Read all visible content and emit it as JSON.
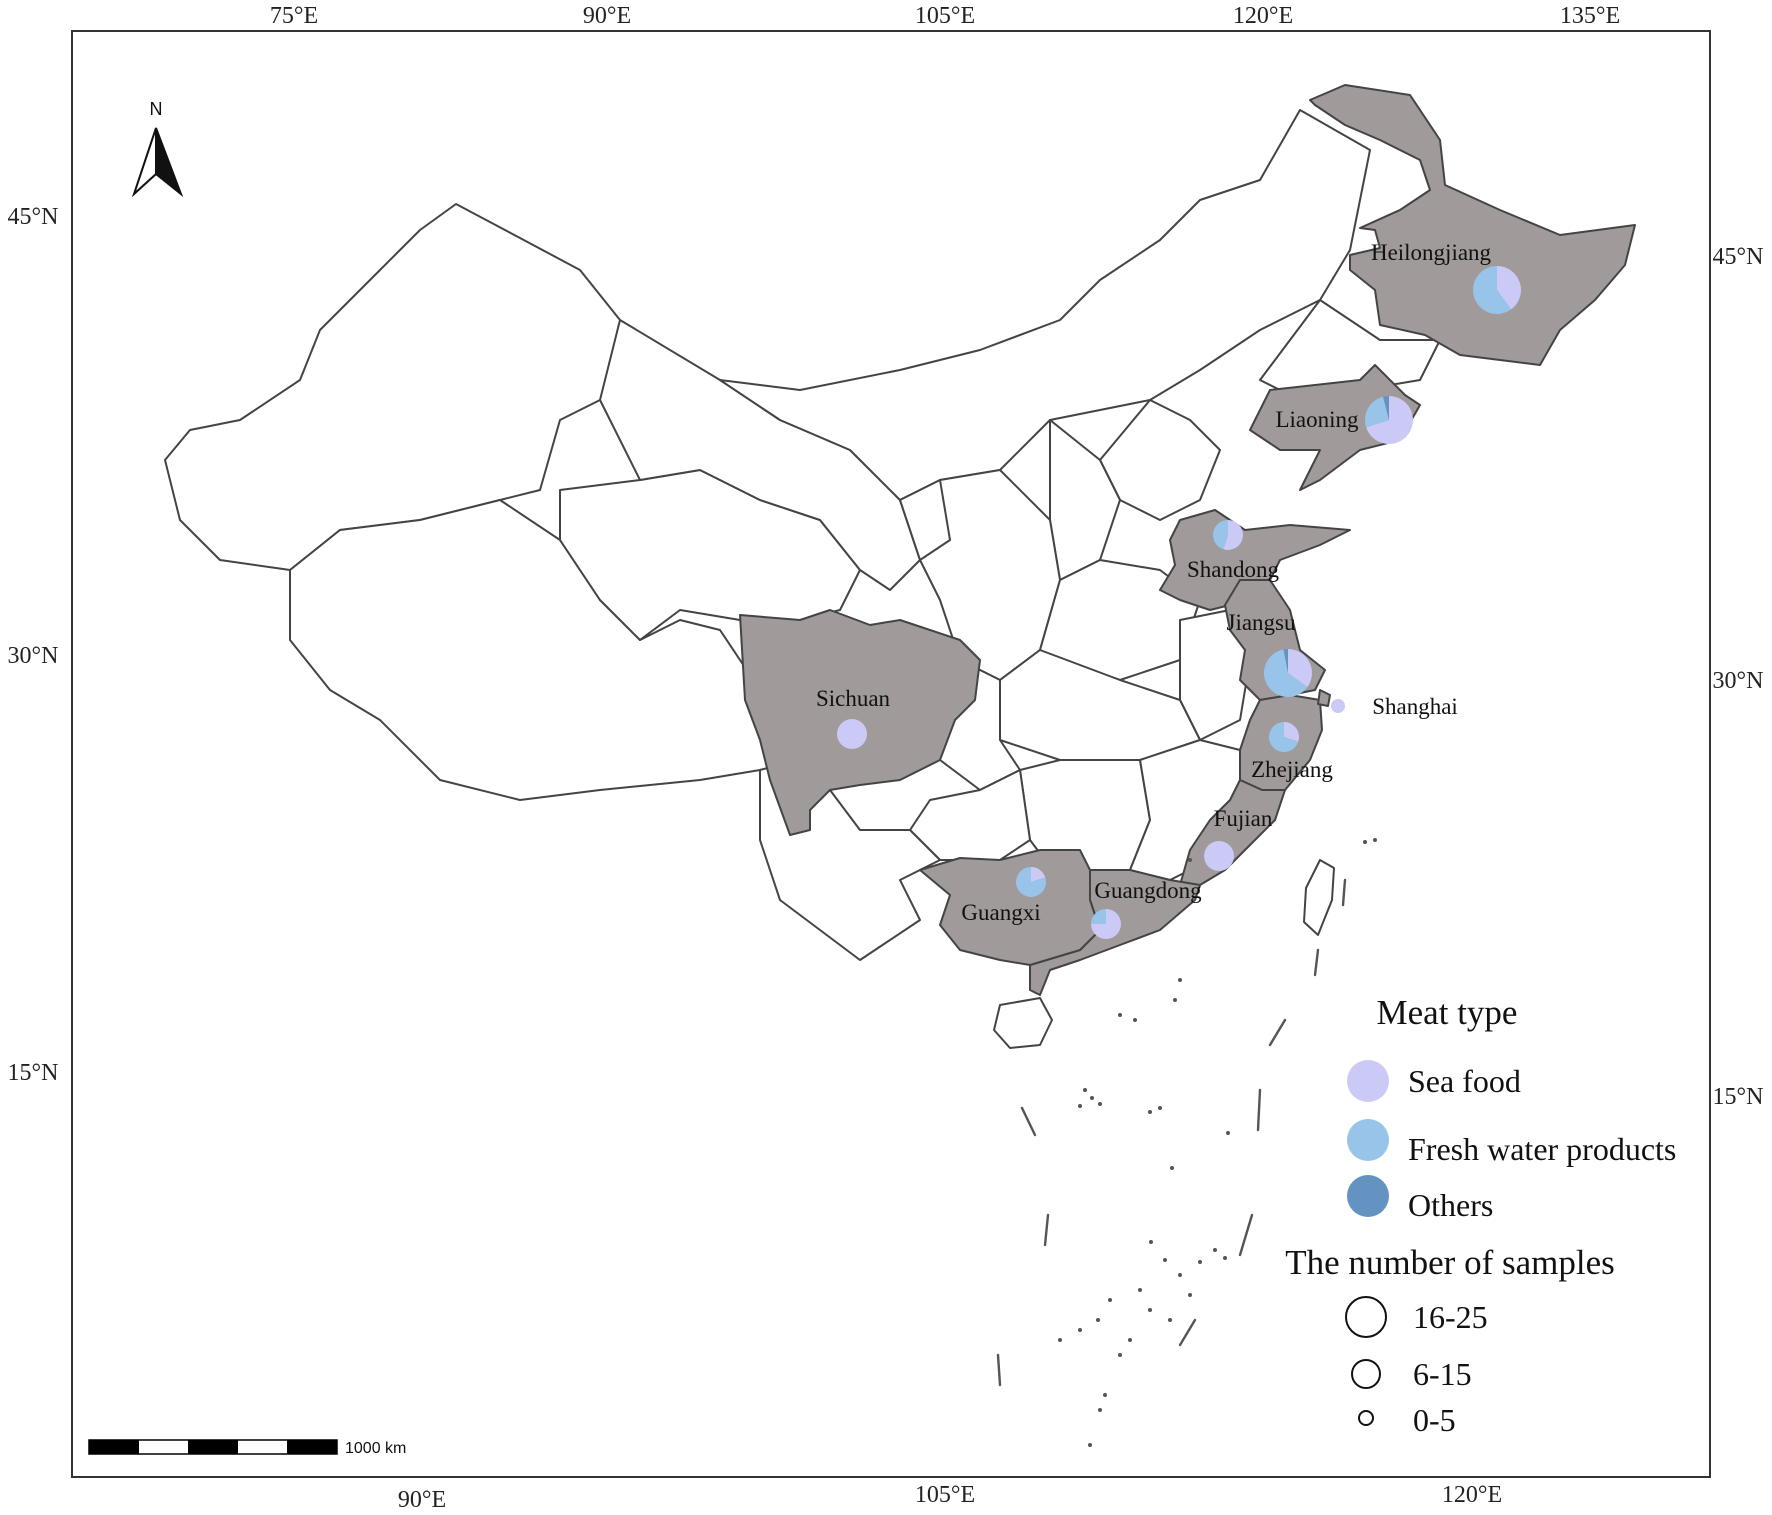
{
  "top_ticks": [
    "75°E",
    "90°E",
    "105°E",
    "120°E",
    "135°E"
  ],
  "bottom_ticks": [
    "90°E",
    "105°E",
    "120°E"
  ],
  "left_ticks": [
    "45°N",
    "30°N",
    "15°N"
  ],
  "right_ticks": [
    "45°N",
    "30°N",
    "15°N"
  ],
  "north_label": "N",
  "scale_label": "1000 km",
  "provinces": [
    {
      "name": "Heilongjiang",
      "size": "16-25",
      "sea": 0.4,
      "fresh": 0.6,
      "others": 0.0
    },
    {
      "name": "Liaoning",
      "size": "16-25",
      "sea": 0.7,
      "fresh": 0.26,
      "others": 0.04
    },
    {
      "name": "Shandong",
      "size": "6-15",
      "sea": 0.55,
      "fresh": 0.45,
      "others": 0.0
    },
    {
      "name": "Jiangsu",
      "size": "16-25",
      "sea": 0.35,
      "fresh": 0.62,
      "others": 0.03
    },
    {
      "name": "Shanghai",
      "size": "0-5",
      "sea": 1.0,
      "fresh": 0.0,
      "others": 0.0
    },
    {
      "name": "Zhejiang",
      "size": "6-15",
      "sea": 0.3,
      "fresh": 0.7,
      "others": 0.0
    },
    {
      "name": "Fujian",
      "size": "6-15",
      "sea": 1.0,
      "fresh": 0.0,
      "others": 0.0
    },
    {
      "name": "Guangdong",
      "size": "6-15",
      "sea": 0.75,
      "fresh": 0.25,
      "others": 0.0
    },
    {
      "name": "Guangxi",
      "size": "6-15",
      "sea": 0.2,
      "fresh": 0.8,
      "others": 0.0
    },
    {
      "name": "Sichuan",
      "size": "6-15",
      "sea": 1.0,
      "fresh": 0.0,
      "others": 0.0
    }
  ],
  "legend": {
    "meat_title": "Meat type",
    "meat_types": [
      {
        "label": "Sea food",
        "color": "#cbc9f6"
      },
      {
        "label": "Fresh water products",
        "color": "#99c4ea"
      },
      {
        "label": "Others",
        "color": "#6493c2"
      }
    ],
    "samples_title": "The number of samples",
    "sample_classes": [
      "16-25",
      "6-15",
      "0-5"
    ]
  }
}
